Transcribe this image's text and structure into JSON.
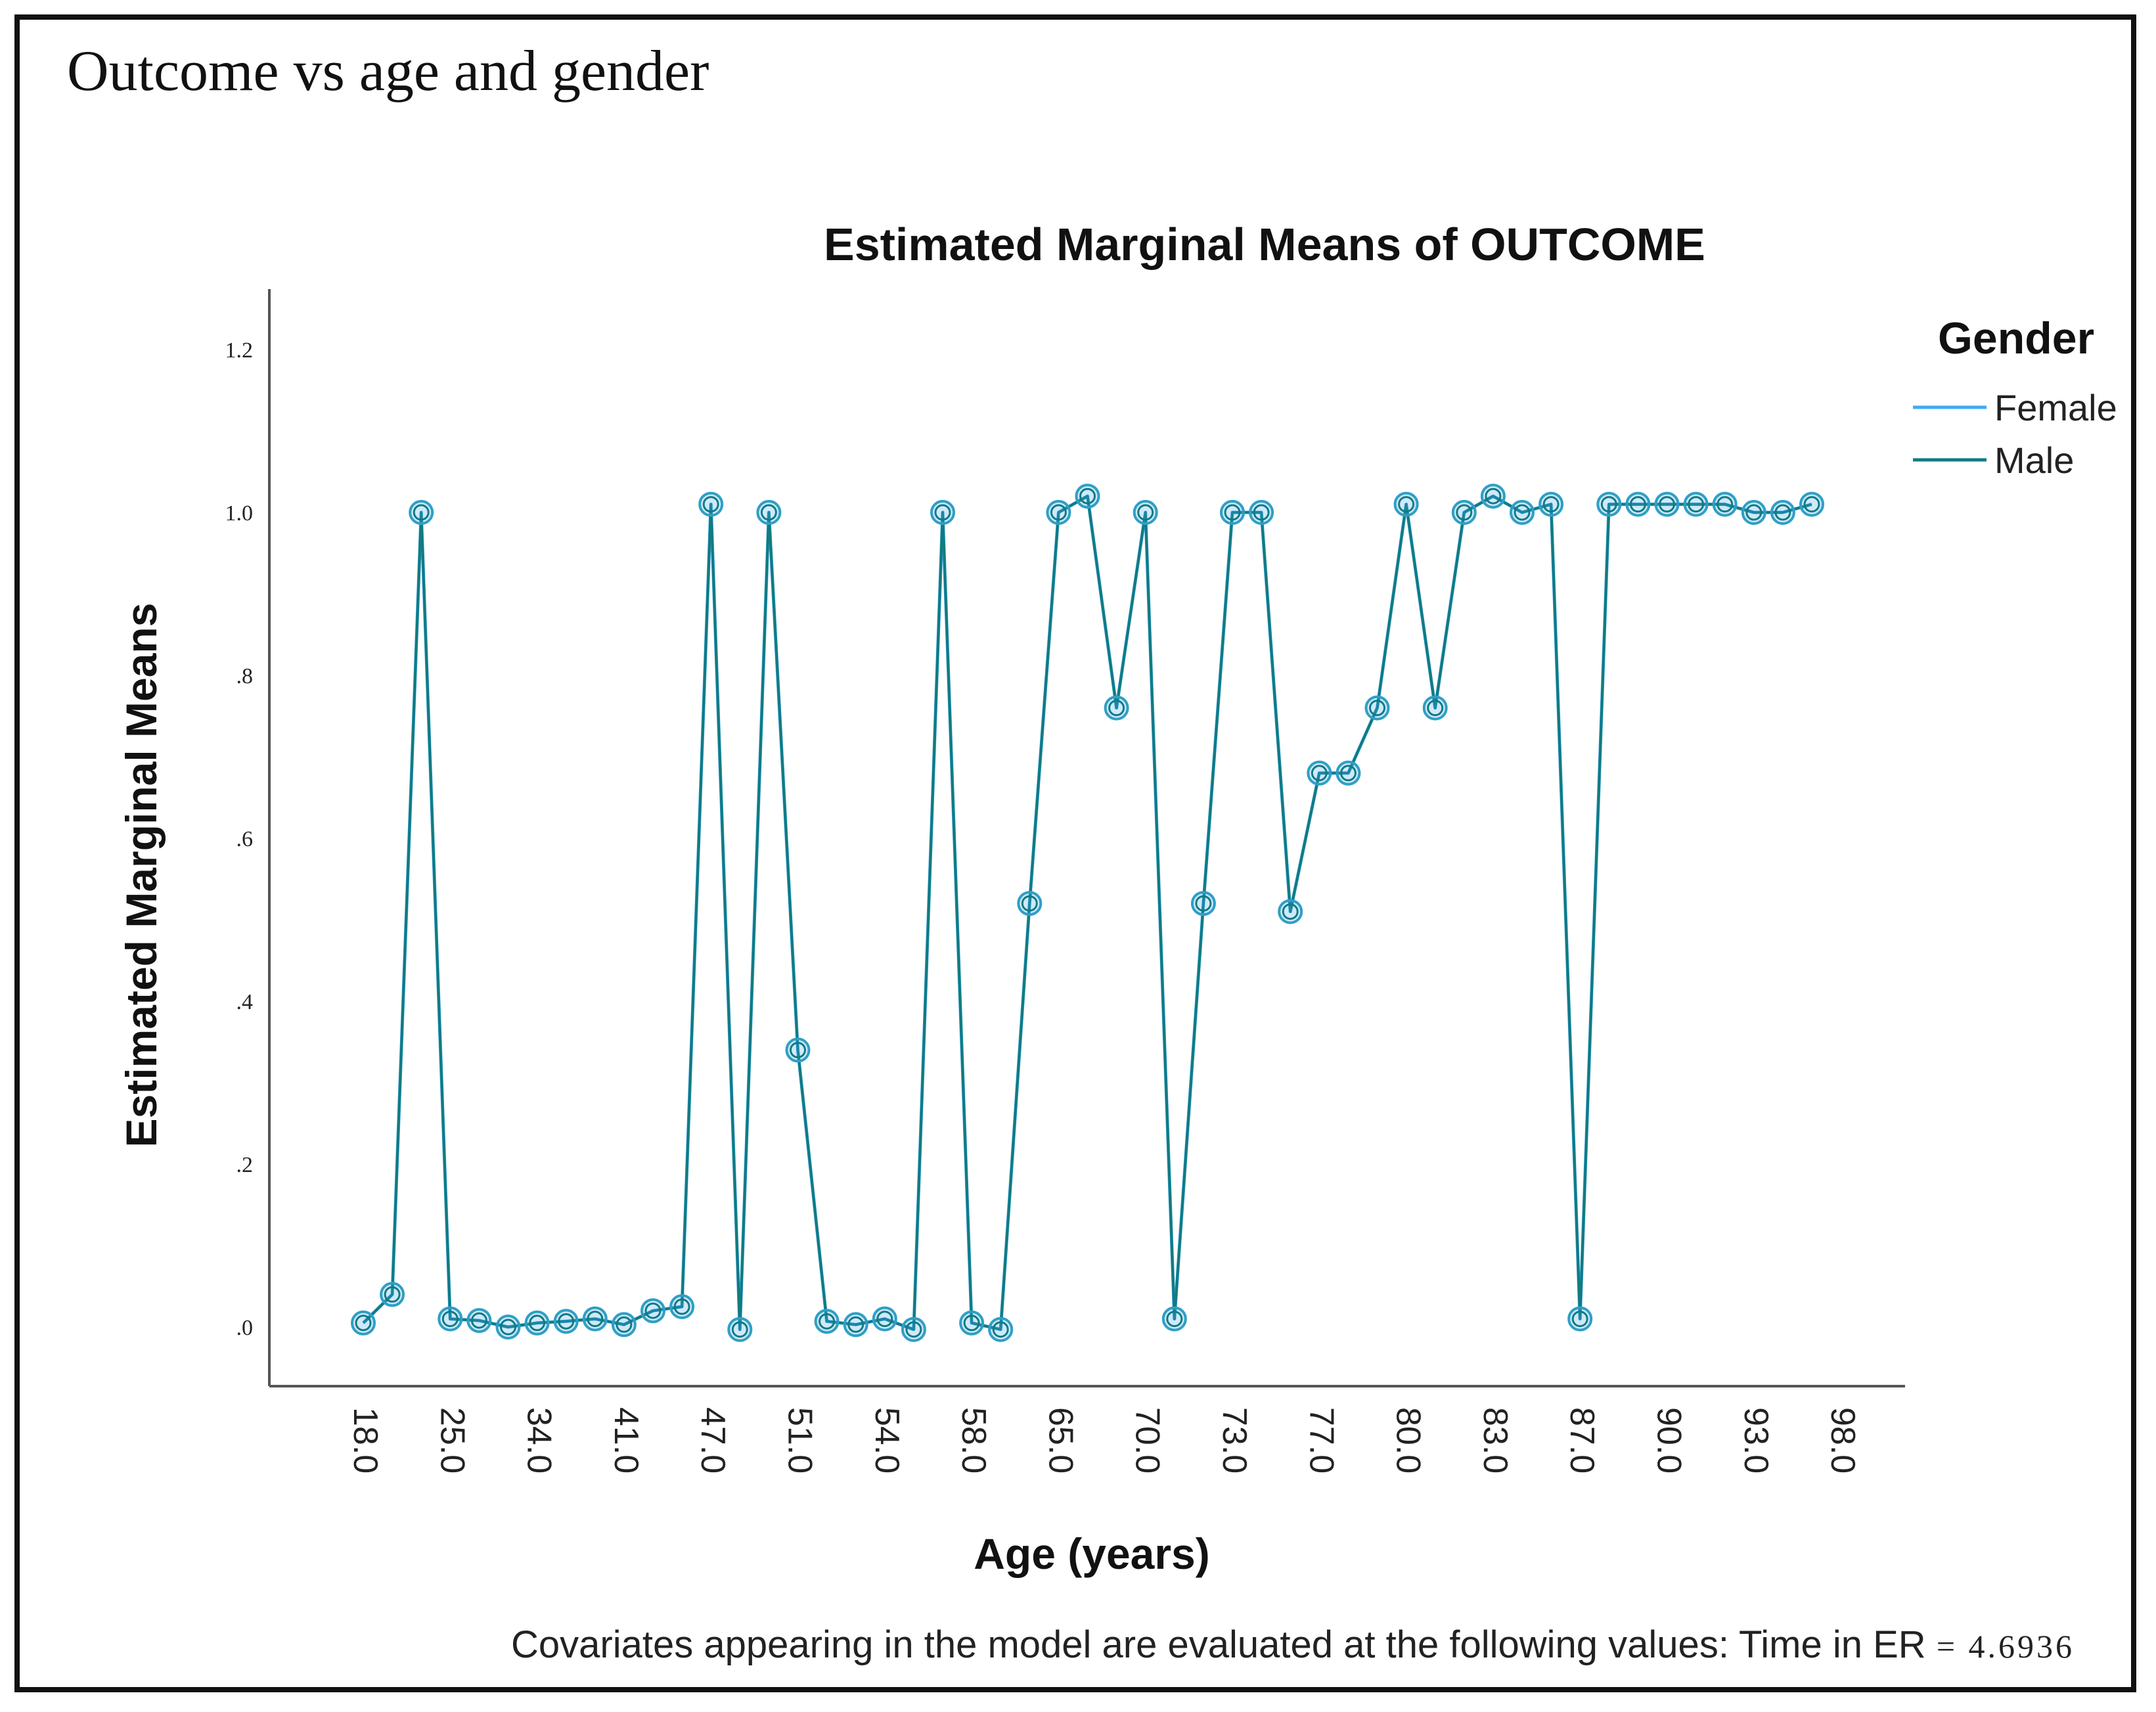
{
  "heading": "Outcome vs age and gender",
  "footnote": {
    "text": "Covariates appearing in the model are evaluated at the following values:  Time in ER",
    "value": "= 4.6936"
  },
  "chart_data": {
    "type": "line",
    "title": "Estimated Marginal Means of OUTCOME",
    "xlabel": "Age (years)",
    "ylabel": "Estimated Marginal Means",
    "ylim": [
      -0.05,
      1.27
    ],
    "yticks": [
      0.0,
      0.2,
      0.4,
      0.6,
      0.8,
      1.0,
      1.2
    ],
    "ytick_labels": [
      ".0",
      ".2",
      ".4",
      ".6",
      ".8",
      "1.0",
      "1.2"
    ],
    "xtick_labels": [
      "18.0",
      "25.0",
      "34.0",
      "41.0",
      "47.0",
      "51.0",
      "54.0",
      "58.0",
      "65.0",
      "70.0",
      "73.0",
      "77.0",
      "80.0",
      "83.0",
      "87.0",
      "90.0",
      "93.0",
      "98.0"
    ],
    "xtick_every": 3,
    "legend": {
      "title": "Gender",
      "position": "right",
      "items": [
        {
          "name": "Female",
          "color": "#3fa9f5"
        },
        {
          "name": "Male",
          "color": "#127b80"
        }
      ]
    },
    "marker_color": "#2f9fc6",
    "series": [
      {
        "name": "Female",
        "color": "#3fa9f5",
        "values": [
          0.005,
          0.04,
          1.0,
          0.01,
          0.008,
          0.0,
          0.005,
          0.007,
          0.01,
          0.003,
          0.02,
          0.025,
          1.01,
          -0.003,
          1.0,
          0.34,
          0.007,
          0.003,
          0.01,
          -0.003,
          1.0,
          0.005,
          -0.003,
          0.52,
          1.0,
          1.02,
          0.76,
          1.0,
          0.01,
          0.52,
          1.0,
          1.0,
          0.51,
          0.68,
          0.68,
          0.76,
          1.01,
          0.76,
          1.0,
          1.02,
          1.0,
          1.01,
          0.01,
          1.01,
          1.01,
          1.01,
          1.01,
          1.01,
          1.0,
          1.0,
          1.01
        ]
      },
      {
        "name": "Male",
        "color": "#127b80",
        "values": [
          0.005,
          0.04,
          1.0,
          0.01,
          0.008,
          0.0,
          0.005,
          0.007,
          0.01,
          0.003,
          0.02,
          0.025,
          1.01,
          -0.003,
          1.0,
          0.34,
          0.007,
          0.003,
          0.01,
          -0.003,
          1.0,
          0.005,
          -0.003,
          0.52,
          1.0,
          1.02,
          0.76,
          1.0,
          0.01,
          0.52,
          1.0,
          1.0,
          0.51,
          0.68,
          0.68,
          0.76,
          1.01,
          0.76,
          1.0,
          1.02,
          1.0,
          1.01,
          0.01,
          1.01,
          1.01,
          1.01,
          1.01,
          1.01,
          1.0,
          1.0,
          1.01
        ]
      }
    ]
  }
}
